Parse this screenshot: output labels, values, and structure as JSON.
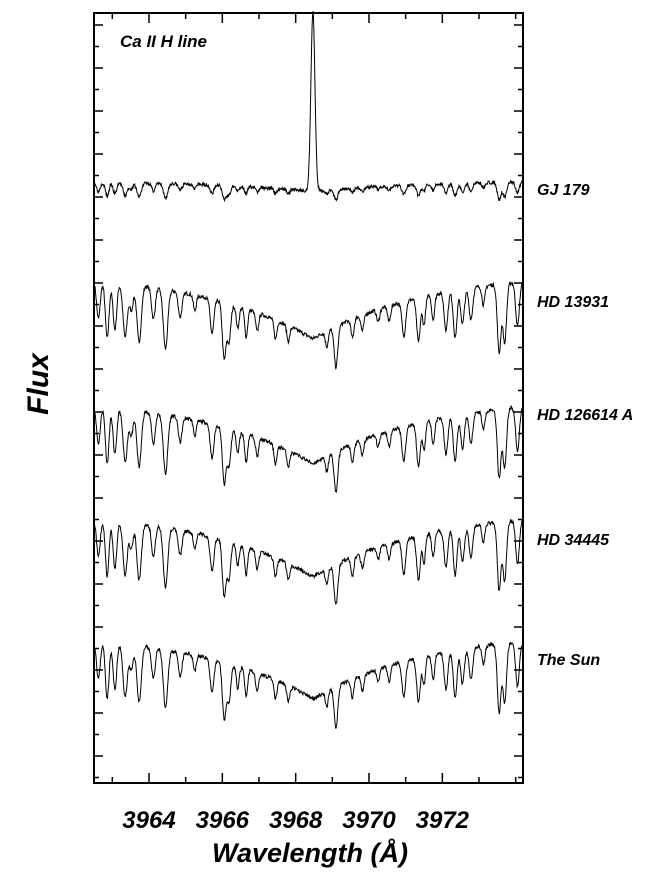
{
  "chart_data": {
    "type": "line",
    "title": "",
    "annotation": "Ca II H line",
    "xlabel": "Wavelength (Å)",
    "ylabel": "Flux",
    "xlim": [
      3962.5,
      3974.2
    ],
    "xticks_major": [
      3964,
      3966,
      3968,
      3970,
      3972
    ],
    "xticks_minor_step": 1,
    "yaxis_ticks_unlabeled": true,
    "grid": false,
    "line_color": "#000000",
    "core_wavelength": 3968.47,
    "series": [
      {
        "name": "GJ 179",
        "emission_core": true
      },
      {
        "name": "HD 13931",
        "emission_core": false
      },
      {
        "name": "HD 126614 A",
        "emission_core": false
      },
      {
        "name": "HD 34445",
        "emission_core": false
      },
      {
        "name": "The Sun",
        "emission_core": false
      }
    ]
  }
}
